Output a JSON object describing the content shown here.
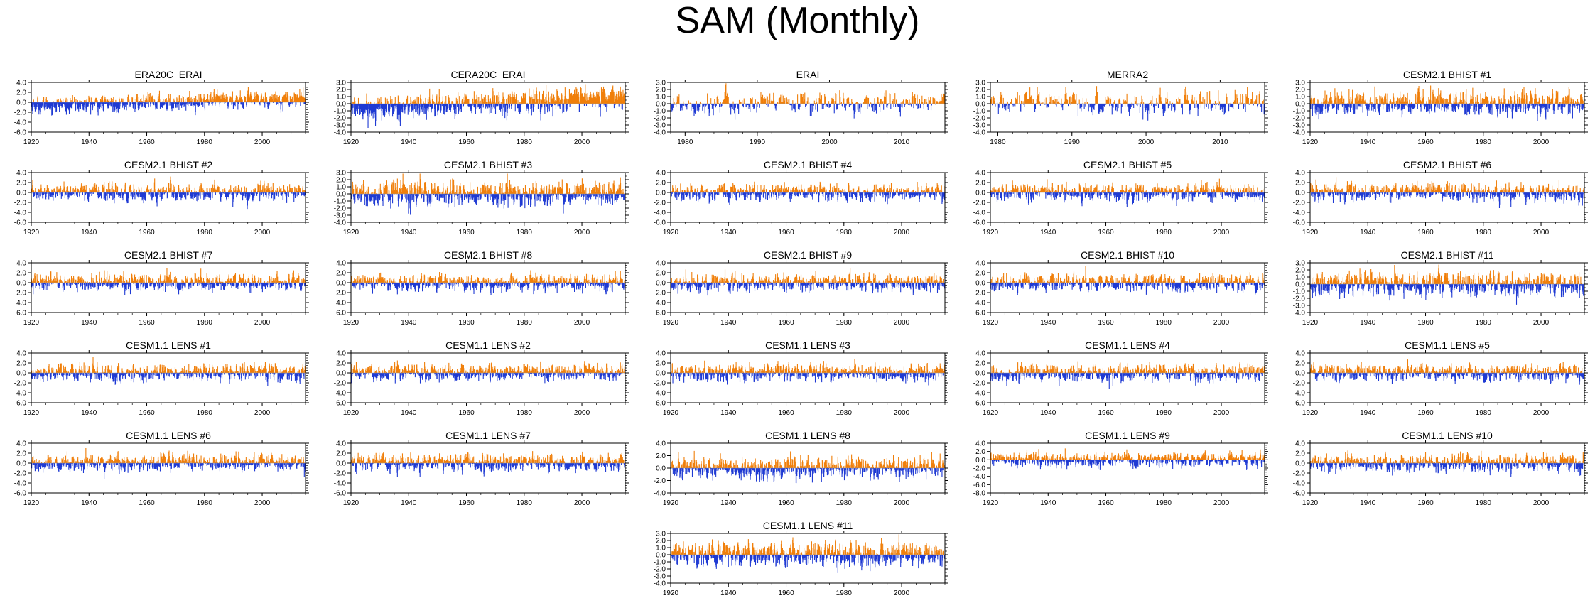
{
  "title": "SAM (Monthly)",
  "colors": {
    "positive": "#f07f0a",
    "negative": "#1f3ad3",
    "axis": "#000000"
  },
  "chart_data": [
    {
      "type": "bar",
      "title": "ERA20C_ERAI",
      "x_range": [
        1920,
        2015
      ],
      "x_ticks": [
        1920,
        1940,
        1960,
        1980,
        2000
      ],
      "ylim": [
        -6,
        4
      ],
      "y_ticks": [
        "4.0",
        "2.0",
        "0.0",
        "-2.0",
        "-4.0",
        "-6.0"
      ]
    },
    {
      "type": "bar",
      "title": "CERA20C_ERAI",
      "x_range": [
        1920,
        2015
      ],
      "x_ticks": [
        1920,
        1940,
        1960,
        1980,
        2000
      ],
      "ylim": [
        -4,
        3
      ],
      "y_ticks": [
        "3.0",
        "2.0",
        "1.0",
        "0.0",
        "-1.0",
        "-2.0",
        "-3.0",
        "-4.0"
      ]
    },
    {
      "type": "bar",
      "title": "ERAI",
      "x_range": [
        1978,
        2016
      ],
      "x_ticks": [
        1980,
        1990,
        2000,
        2010
      ],
      "ylim": [
        -4,
        3
      ],
      "y_ticks": [
        "3.0",
        "2.0",
        "1.0",
        "0.0",
        "-1.0",
        "-2.0",
        "-3.0",
        "-4.0"
      ]
    },
    {
      "type": "bar",
      "title": "MERRA2",
      "x_range": [
        1979,
        2016
      ],
      "x_ticks": [
        1980,
        1990,
        2000,
        2010
      ],
      "ylim": [
        -4,
        3
      ],
      "y_ticks": [
        "3.0",
        "2.0",
        "1.0",
        "0.0",
        "-1.0",
        "-2.0",
        "-3.0",
        "-4.0"
      ]
    },
    {
      "type": "bar",
      "title": "CESM2.1 BHIST #1",
      "x_range": [
        1920,
        2015
      ],
      "x_ticks": [
        1920,
        1940,
        1960,
        1980,
        2000
      ],
      "ylim": [
        -4,
        3
      ],
      "y_ticks": [
        "3.0",
        "2.0",
        "1.0",
        "0.0",
        "-1.0",
        "-2.0",
        "-3.0",
        "-4.0"
      ]
    },
    {
      "type": "bar",
      "title": "CESM2.1 BHIST #2",
      "x_range": [
        1920,
        2015
      ],
      "x_ticks": [
        1920,
        1940,
        1960,
        1980,
        2000
      ],
      "ylim": [
        -6,
        4
      ],
      "y_ticks": [
        "4.0",
        "2.0",
        "0.0",
        "-2.0",
        "-4.0",
        "-6.0"
      ]
    },
    {
      "type": "bar",
      "title": "CESM2.1 BHIST #3",
      "x_range": [
        1920,
        2015
      ],
      "x_ticks": [
        1920,
        1940,
        1960,
        1980,
        2000
      ],
      "ylim": [
        -4,
        3
      ],
      "y_ticks": [
        "3.0",
        "2.0",
        "1.0",
        "0.0",
        "-1.0",
        "-2.0",
        "-3.0",
        "-4.0"
      ]
    },
    {
      "type": "bar",
      "title": "CESM2.1 BHIST #4",
      "x_range": [
        1920,
        2015
      ],
      "x_ticks": [
        1920,
        1940,
        1960,
        1980,
        2000
      ],
      "ylim": [
        -6,
        4
      ],
      "y_ticks": [
        "4.0",
        "2.0",
        "0.0",
        "-2.0",
        "-4.0",
        "-6.0"
      ]
    },
    {
      "type": "bar",
      "title": "CESM2.1 BHIST #5",
      "x_range": [
        1920,
        2015
      ],
      "x_ticks": [
        1920,
        1940,
        1960,
        1980,
        2000
      ],
      "ylim": [
        -6,
        4
      ],
      "y_ticks": [
        "4.0",
        "2.0",
        "0.0",
        "-2.0",
        "-4.0",
        "-6.0"
      ]
    },
    {
      "type": "bar",
      "title": "CESM2.1 BHIST #6",
      "x_range": [
        1920,
        2015
      ],
      "x_ticks": [
        1920,
        1940,
        1960,
        1980,
        2000
      ],
      "ylim": [
        -6,
        4
      ],
      "y_ticks": [
        "4.0",
        "2.0",
        "0.0",
        "-2.0",
        "-4.0",
        "-6.0"
      ]
    },
    {
      "type": "bar",
      "title": "CESM2.1 BHIST #7",
      "x_range": [
        1920,
        2015
      ],
      "x_ticks": [
        1920,
        1940,
        1960,
        1980,
        2000
      ],
      "ylim": [
        -6,
        4
      ],
      "y_ticks": [
        "4.0",
        "2.0",
        "0.0",
        "-2.0",
        "-4.0",
        "-6.0"
      ]
    },
    {
      "type": "bar",
      "title": "CESM2.1 BHIST #8",
      "x_range": [
        1920,
        2015
      ],
      "x_ticks": [
        1920,
        1940,
        1960,
        1980,
        2000
      ],
      "ylim": [
        -6,
        4
      ],
      "y_ticks": [
        "4.0",
        "2.0",
        "0.0",
        "-2.0",
        "-4.0",
        "-6.0"
      ]
    },
    {
      "type": "bar",
      "title": "CESM2.1 BHIST #9",
      "x_range": [
        1920,
        2015
      ],
      "x_ticks": [
        1920,
        1940,
        1960,
        1980,
        2000
      ],
      "ylim": [
        -6,
        4
      ],
      "y_ticks": [
        "4.0",
        "2.0",
        "0.0",
        "-2.0",
        "-4.0",
        "-6.0"
      ]
    },
    {
      "type": "bar",
      "title": "CESM2.1 BHIST #10",
      "x_range": [
        1920,
        2015
      ],
      "x_ticks": [
        1920,
        1940,
        1960,
        1980,
        2000
      ],
      "ylim": [
        -6,
        4
      ],
      "y_ticks": [
        "4.0",
        "2.0",
        "0.0",
        "-2.0",
        "-4.0",
        "-6.0"
      ]
    },
    {
      "type": "bar",
      "title": "CESM2.1 BHIST #11",
      "x_range": [
        1920,
        2015
      ],
      "x_ticks": [
        1920,
        1940,
        1960,
        1980,
        2000
      ],
      "ylim": [
        -4,
        3
      ],
      "y_ticks": [
        "3.0",
        "2.0",
        "1.0",
        "0.0",
        "-1.0",
        "-2.0",
        "-3.0",
        "-4.0"
      ]
    },
    {
      "type": "bar",
      "title": "CESM1.1 LENS #1",
      "x_range": [
        1920,
        2015
      ],
      "x_ticks": [
        1920,
        1940,
        1960,
        1980,
        2000
      ],
      "ylim": [
        -6,
        4
      ],
      "y_ticks": [
        "4.0",
        "2.0",
        "0.0",
        "-2.0",
        "-4.0",
        "-6.0"
      ]
    },
    {
      "type": "bar",
      "title": "CESM1.1 LENS #2",
      "x_range": [
        1920,
        2015
      ],
      "x_ticks": [
        1920,
        1940,
        1960,
        1980,
        2000
      ],
      "ylim": [
        -6,
        4
      ],
      "y_ticks": [
        "4.0",
        "2.0",
        "0.0",
        "-2.0",
        "-4.0",
        "-6.0"
      ]
    },
    {
      "type": "bar",
      "title": "CESM1.1 LENS #3",
      "x_range": [
        1920,
        2015
      ],
      "x_ticks": [
        1920,
        1940,
        1960,
        1980,
        2000
      ],
      "ylim": [
        -6,
        4
      ],
      "y_ticks": [
        "4.0",
        "2.0",
        "0.0",
        "-2.0",
        "-4.0",
        "-6.0"
      ]
    },
    {
      "type": "bar",
      "title": "CESM1.1 LENS #4",
      "x_range": [
        1920,
        2015
      ],
      "x_ticks": [
        1920,
        1940,
        1960,
        1980,
        2000
      ],
      "ylim": [
        -6,
        4
      ],
      "y_ticks": [
        "4.0",
        "2.0",
        "0.0",
        "-2.0",
        "-4.0",
        "-6.0"
      ]
    },
    {
      "type": "bar",
      "title": "CESM1.1 LENS #5",
      "x_range": [
        1920,
        2015
      ],
      "x_ticks": [
        1920,
        1940,
        1960,
        1980,
        2000
      ],
      "ylim": [
        -6,
        4
      ],
      "y_ticks": [
        "4.0",
        "2.0",
        "0.0",
        "-2.0",
        "-4.0",
        "-6.0"
      ]
    },
    {
      "type": "bar",
      "title": "CESM1.1 LENS #6",
      "x_range": [
        1920,
        2015
      ],
      "x_ticks": [
        1920,
        1940,
        1960,
        1980,
        2000
      ],
      "ylim": [
        -6,
        4
      ],
      "y_ticks": [
        "4.0",
        "2.0",
        "0.0",
        "-2.0",
        "-4.0",
        "-6.0"
      ]
    },
    {
      "type": "bar",
      "title": "CESM1.1 LENS #7",
      "x_range": [
        1920,
        2015
      ],
      "x_ticks": [
        1920,
        1940,
        1960,
        1980,
        2000
      ],
      "ylim": [
        -6,
        4
      ],
      "y_ticks": [
        "4.0",
        "2.0",
        "0.0",
        "-2.0",
        "-4.0",
        "-6.0"
      ]
    },
    {
      "type": "bar",
      "title": "CESM1.1 LENS #8",
      "x_range": [
        1920,
        2015
      ],
      "x_ticks": [
        1920,
        1940,
        1960,
        1980,
        2000
      ],
      "ylim": [
        -4,
        4
      ],
      "y_ticks": [
        "4.0",
        "2.0",
        "0.0",
        "-2.0",
        "-4.0"
      ]
    },
    {
      "type": "bar",
      "title": "CESM1.1 LENS #9",
      "x_range": [
        1920,
        2015
      ],
      "x_ticks": [
        1920,
        1940,
        1960,
        1980,
        2000
      ],
      "ylim": [
        -8,
        4
      ],
      "y_ticks": [
        "4.0",
        "2.0",
        "0.0",
        "-2.0",
        "-4.0",
        "-6.0",
        "-8.0"
      ]
    },
    {
      "type": "bar",
      "title": "CESM1.1 LENS #10",
      "x_range": [
        1920,
        2015
      ],
      "x_ticks": [
        1920,
        1940,
        1960,
        1980,
        2000
      ],
      "ylim": [
        -6,
        4
      ],
      "y_ticks": [
        "4.0",
        "2.0",
        "0.0",
        "-2.0",
        "-4.0",
        "-6.0"
      ]
    },
    {
      "type": "bar",
      "title": "CESM1.1 LENS #11",
      "x_range": [
        1920,
        2015
      ],
      "x_ticks": [
        1920,
        1940,
        1960,
        1980,
        2000
      ],
      "ylim": [
        -4,
        3
      ],
      "y_ticks": [
        "3.0",
        "2.0",
        "1.0",
        "0.0",
        "-1.0",
        "-2.0",
        "-3.0",
        "-4.0"
      ]
    }
  ]
}
